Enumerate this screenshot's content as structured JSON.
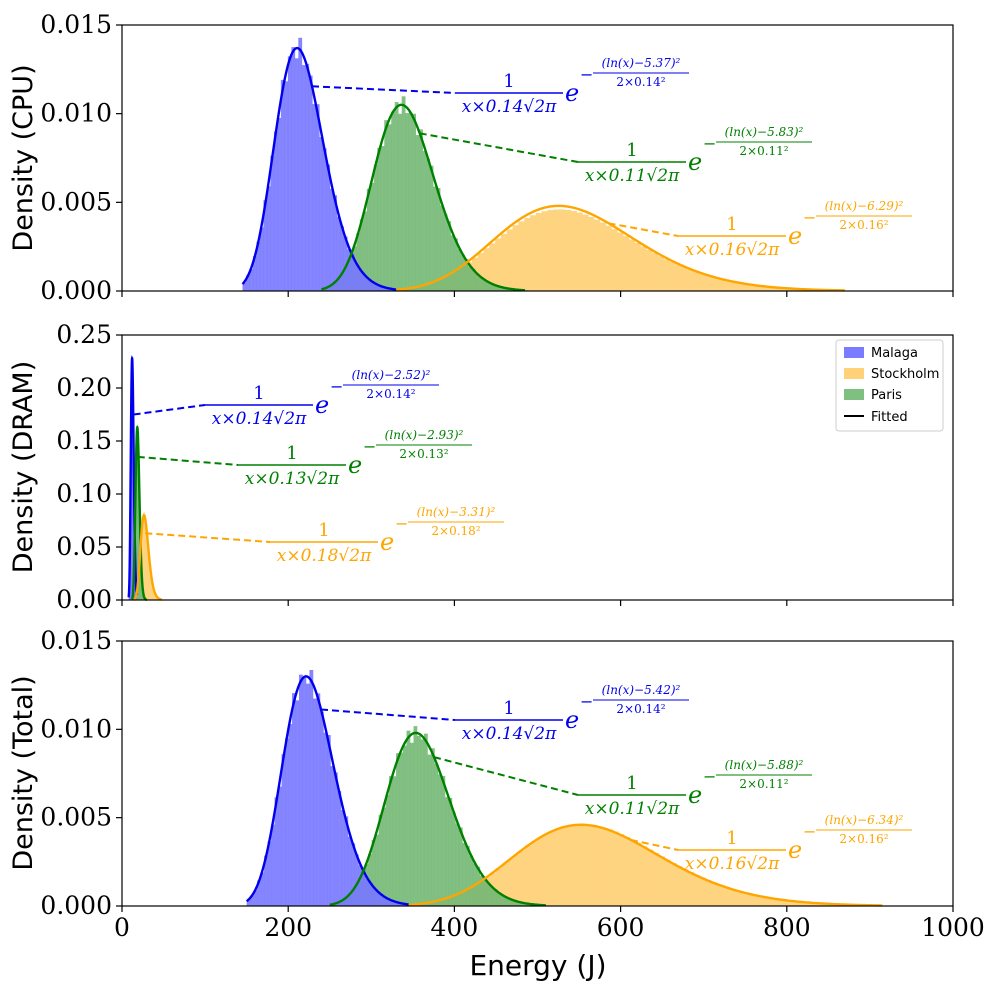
{
  "figure": {
    "xlabel": "Energy (J)",
    "xticks": [
      "0",
      "200",
      "400",
      "600",
      "800",
      "1000"
    ],
    "xlim": [
      0,
      1000
    ]
  },
  "legend": {
    "placement": "top-right of middle panel",
    "entries": [
      {
        "label": "Malaga",
        "color": "#7b7bff",
        "kind": "patch"
      },
      {
        "label": "Stockholm",
        "color": "#ffd27a",
        "kind": "patch"
      },
      {
        "label": "Paris",
        "color": "#7fbf7f",
        "kind": "patch"
      },
      {
        "label": "Fitted",
        "color": "#000000",
        "kind": "line"
      }
    ]
  },
  "colors": {
    "malaga_line": "#0000ee",
    "malaga_fill": "#7878ff",
    "paris_line": "#008000",
    "paris_fill": "#74b874",
    "stockholm_line": "#ffa500",
    "stockholm_fill": "#ffd27a"
  },
  "chart_data": [
    {
      "type": "histogram",
      "panel": "cpu",
      "ylabel": "Density (CPU)",
      "ylim": [
        0,
        0.015
      ],
      "yticks": [
        "0.000",
        "0.005",
        "0.010",
        "0.015"
      ],
      "series": [
        {
          "name": "Malaga",
          "fit": "lognormal",
          "mu": 5.37,
          "sigma": 0.14,
          "peak_density": 0.0137,
          "range": [
            145,
            330
          ],
          "mu_label": "5.37",
          "sigma_label": "0.14"
        },
        {
          "name": "Paris",
          "fit": "lognormal",
          "mu": 5.83,
          "sigma": 0.11,
          "peak_density": 0.0105,
          "range": [
            240,
            485
          ],
          "mu_label": "5.83",
          "sigma_label": "0.11"
        },
        {
          "name": "Stockholm",
          "fit": "lognormal",
          "mu": 6.29,
          "sigma": 0.16,
          "peak_density": 0.0048,
          "range": [
            330,
            870
          ],
          "mu_label": "6.29",
          "sigma_label": "0.16"
        }
      ]
    },
    {
      "type": "histogram",
      "panel": "dram",
      "ylabel": "Density (DRAM)",
      "ylim": [
        0,
        0.25
      ],
      "yticks": [
        "0.00",
        "0.05",
        "0.10",
        "0.15",
        "0.20",
        "0.25"
      ],
      "series": [
        {
          "name": "Malaga",
          "fit": "lognormal",
          "mu": 2.52,
          "sigma": 0.14,
          "peak_density": 0.228,
          "range": [
            8,
            18
          ],
          "mu_label": "2.52",
          "sigma_label": "0.14"
        },
        {
          "name": "Paris",
          "fit": "lognormal",
          "mu": 2.93,
          "sigma": 0.13,
          "peak_density": 0.163,
          "range": [
            12,
            30
          ],
          "mu_label": "2.93",
          "sigma_label": "0.13"
        },
        {
          "name": "Stockholm",
          "fit": "lognormal",
          "mu": 3.31,
          "sigma": 0.18,
          "peak_density": 0.08,
          "range": [
            14,
            48
          ],
          "mu_label": "3.31",
          "sigma_label": "0.18"
        }
      ]
    },
    {
      "type": "histogram",
      "panel": "total",
      "ylabel": "Density (Total)",
      "ylim": [
        0,
        0.015
      ],
      "yticks": [
        "0.000",
        "0.005",
        "0.010",
        "0.015"
      ],
      "series": [
        {
          "name": "Malaga",
          "fit": "lognormal",
          "mu": 5.42,
          "sigma": 0.14,
          "peak_density": 0.013,
          "range": [
            150,
            345
          ],
          "mu_label": "5.42",
          "sigma_label": "0.14"
        },
        {
          "name": "Paris",
          "fit": "lognormal",
          "mu": 5.88,
          "sigma": 0.11,
          "peak_density": 0.0098,
          "range": [
            250,
            510
          ],
          "mu_label": "5.88",
          "sigma_label": "0.11"
        },
        {
          "name": "Stockholm",
          "fit": "lognormal",
          "mu": 6.34,
          "sigma": 0.16,
          "peak_density": 0.0046,
          "range": [
            345,
            915
          ],
          "mu_label": "6.34",
          "sigma_label": "0.16"
        }
      ]
    }
  ]
}
